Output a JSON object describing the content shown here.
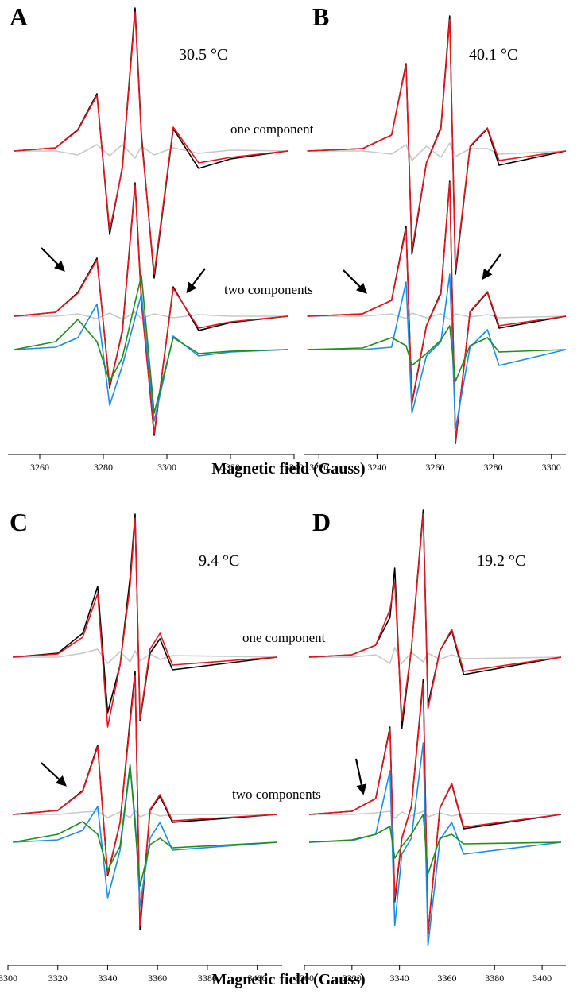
{
  "chart_data": [
    {
      "type": "line",
      "panel_label": "A",
      "temperature": "30.5 °C",
      "one_component_label": "one component",
      "two_components_label": "two components",
      "xlabel": "Magnetic field (Gauss)",
      "xlim": [
        3250,
        3340
      ],
      "xticks": [
        3260,
        3280,
        3300,
        3320,
        3340
      ],
      "x": [
        3252,
        3265,
        3272,
        3278,
        3282,
        3286,
        3290,
        3292,
        3296,
        3302,
        3310,
        3320,
        3338
      ],
      "one_component_series": [
        {
          "color": "#c8c8c8",
          "values": [
            0,
            0,
            -0.5,
            0.8,
            -0.6,
            0.8,
            -0.9,
            0.6,
            -0.5,
            0.4,
            -0.3,
            0.1,
            0
          ]
        },
        {
          "color": "#000000",
          "values": [
            0,
            0.4,
            2.7,
            7.2,
            -10.5,
            -2,
            18,
            2,
            -16,
            2.8,
            -2.2,
            -1,
            0
          ]
        },
        {
          "color": "#e8141e",
          "values": [
            0,
            0.4,
            2.6,
            7,
            -10,
            -2.2,
            17.5,
            1.5,
            -15.5,
            3,
            -1.5,
            -0.8,
            0
          ]
        }
      ],
      "two_component_series": [
        {
          "color": "#c8c8c8",
          "values": [
            0,
            0,
            0.3,
            -0.3,
            0.4,
            -0.4,
            0.5,
            -0.3,
            0.3,
            -0.2,
            0.2,
            0,
            0
          ]
        },
        {
          "color": "#000000",
          "values": [
            0,
            0.5,
            3,
            7.3,
            -9,
            -1.8,
            16.8,
            2,
            -15,
            3.7,
            -1.8,
            -0.8,
            0
          ]
        },
        {
          "color": "#e8141e",
          "values": [
            0,
            0.5,
            2.9,
            7.1,
            -8.8,
            -2,
            16.5,
            1.6,
            -14.8,
            3.5,
            -1.5,
            -0.7,
            0
          ]
        },
        {
          "color": "#1e8ce6",
          "values": [
            0,
            0.3,
            1.5,
            5.7,
            -7,
            -2,
            4,
            7,
            -9,
            1.7,
            -0.8,
            -0.3,
            0
          ]
        },
        {
          "color": "#1e8c1e",
          "values": [
            0,
            1,
            3.8,
            1,
            -4,
            -1,
            6,
            9.3,
            -8,
            1.5,
            -0.5,
            -0.2,
            0
          ]
        }
      ]
    },
    {
      "type": "line",
      "panel_label": "B",
      "temperature": "40.1 °C",
      "xlim": [
        3215,
        3305
      ],
      "xticks": [
        3220,
        3240,
        3260,
        3280,
        3300
      ],
      "x": [
        3216,
        3235,
        3245,
        3250,
        3252,
        3257,
        3262,
        3265,
        3267,
        3272,
        3278,
        3282,
        3305
      ],
      "one_component_series": [
        {
          "color": "#c8c8c8",
          "values": [
            0,
            0,
            -0.4,
            0.8,
            -1.2,
            0.6,
            -0.8,
            1,
            -0.7,
            0.3,
            0.3,
            -0.4,
            0
          ]
        },
        {
          "color": "#000000",
          "values": [
            0,
            0.3,
            2,
            11,
            -13,
            -1.5,
            3,
            17,
            -15.5,
            0.5,
            2.8,
            -1.8,
            0
          ]
        },
        {
          "color": "#e8141e",
          "values": [
            0,
            0.3,
            2,
            10.8,
            -12.5,
            -1.5,
            2.8,
            16.5,
            -15,
            0.6,
            2.9,
            -1.2,
            0
          ]
        }
      ],
      "two_component_series": [
        {
          "color": "#c8c8c8",
          "values": [
            0,
            0,
            0.3,
            -0.3,
            0.4,
            -0.2,
            0.3,
            -0.4,
            0.3,
            -0.1,
            0.2,
            -0.2,
            0
          ]
        },
        {
          "color": "#000000",
          "values": [
            0,
            0.3,
            2,
            11.3,
            -11,
            -1.2,
            3,
            17,
            -16,
            0.5,
            3,
            -1.5,
            0
          ]
        },
        {
          "color": "#e8141e",
          "values": [
            0,
            0.3,
            2,
            11,
            -10.8,
            -1.2,
            2.8,
            16.8,
            -15.8,
            0.6,
            3.1,
            -1.2,
            0
          ]
        },
        {
          "color": "#1e8ce6",
          "values": [
            0,
            0,
            0.3,
            8.5,
            -8,
            -0.8,
            1,
            9.5,
            -10,
            0.3,
            2.5,
            -2,
            0
          ]
        },
        {
          "color": "#1e8c1e",
          "values": [
            0,
            0.2,
            1.5,
            0.5,
            -2,
            -0.5,
            1.2,
            3,
            -4,
            0.5,
            1.5,
            -0.3,
            0
          ]
        }
      ]
    },
    {
      "type": "line",
      "panel_label": "C",
      "temperature": "9.4 °C",
      "one_component_label": "one component",
      "two_components_label": "two components",
      "xlabel": "Magnetic field (Gauss)",
      "xlim": [
        3300,
        3410
      ],
      "xticks": [
        3300,
        3320,
        3340,
        3360,
        3380,
        3400
      ],
      "x": [
        3302,
        3320,
        3330,
        3336,
        3340,
        3345,
        3349,
        3351,
        3353,
        3357,
        3361,
        3366,
        3408
      ],
      "one_component_series": [
        {
          "color": "#c8c8c8",
          "values": [
            0,
            0,
            0.5,
            1,
            -0.8,
            0.7,
            -0.6,
            0.8,
            -0.5,
            0.4,
            -0.3,
            0.2,
            0
          ]
        },
        {
          "color": "#000000",
          "values": [
            0,
            0.5,
            3,
            8.9,
            -7,
            -1,
            10,
            18,
            -8,
            0.5,
            2.3,
            -1.6,
            0
          ]
        },
        {
          "color": "#e8141e",
          "values": [
            0,
            0.4,
            2.5,
            8,
            -8.8,
            -1,
            9,
            17.5,
            -7.8,
            1,
            3,
            -1,
            0
          ]
        }
      ],
      "two_component_series": [
        {
          "color": "#c8c8c8",
          "values": [
            0,
            0,
            0.3,
            0.4,
            -0.4,
            0.3,
            -0.4,
            0.5,
            -0.3,
            0.2,
            -0.2,
            0,
            0
          ]
        },
        {
          "color": "#000000",
          "values": [
            0,
            0.5,
            3,
            8.7,
            -7.7,
            -1,
            12,
            18,
            -14.5,
            0.5,
            2.3,
            -1,
            0
          ]
        },
        {
          "color": "#e8141e",
          "values": [
            0,
            0.5,
            2.9,
            8.5,
            -7.5,
            -1,
            11.5,
            17.5,
            -14,
            0.6,
            2.5,
            -0.8,
            0
          ]
        },
        {
          "color": "#1e8ce6",
          "values": [
            0,
            0.3,
            1.5,
            4.5,
            -7,
            -1,
            9.5,
            3,
            -8,
            0.5,
            2.5,
            -1,
            0
          ]
        },
        {
          "color": "#1e8c1e",
          "values": [
            0,
            1,
            2.6,
            1,
            -3.5,
            -0.5,
            9.8,
            2,
            -5.5,
            -0.3,
            0.5,
            -0.7,
            0
          ]
        }
      ]
    },
    {
      "type": "line",
      "panel_label": "D",
      "temperature": "19.2 °C",
      "xlim": [
        3300,
        3410
      ],
      "xticks": [
        3300,
        3320,
        3340,
        3360,
        3380,
        3400
      ],
      "x": [
        3302,
        3320,
        3330,
        3336,
        3338,
        3341,
        3345,
        3350,
        3352,
        3357,
        3362,
        3367,
        3408
      ],
      "one_component_series": [
        {
          "color": "#c8c8c8",
          "values": [
            0,
            0,
            0.3,
            -0.8,
            1.2,
            -0.8,
            0.6,
            -0.6,
            0.5,
            -0.3,
            0.3,
            -0.2,
            0
          ]
        },
        {
          "color": "#000000",
          "values": [
            0,
            0.3,
            1.5,
            5,
            11.2,
            -9,
            1,
            18.5,
            -6,
            0.8,
            3.3,
            -2.2,
            0
          ]
        },
        {
          "color": "#e8141e",
          "values": [
            0,
            0.3,
            1.5,
            6,
            9.5,
            -8,
            1,
            18,
            -6.5,
            0.8,
            3.5,
            -1.8,
            0
          ]
        }
      ],
      "two_component_series": [
        {
          "color": "#c8c8c8",
          "values": [
            0,
            0,
            0.2,
            0.4,
            -0.5,
            0.3,
            -0.2,
            0.4,
            -0.3,
            0.2,
            -0.2,
            0.1,
            0
          ]
        },
        {
          "color": "#000000",
          "values": [
            0,
            0.4,
            2,
            11,
            -11,
            -3,
            1,
            17,
            -15,
            0.8,
            3.8,
            -1.8,
            0
          ]
        },
        {
          "color": "#e8141e",
          "values": [
            0,
            0.4,
            2,
            10.8,
            -10.5,
            -3,
            1,
            16.5,
            -14.8,
            0.8,
            3.9,
            -1.6,
            0
          ]
        },
        {
          "color": "#1e8ce6",
          "values": [
            0,
            0.2,
            1,
            9,
            -10.5,
            -1.5,
            0.5,
            12.5,
            -13,
            0.3,
            2.5,
            -1.5,
            0
          ]
        },
        {
          "color": "#1e8c1e",
          "values": [
            0,
            0.3,
            1,
            2,
            -2,
            -0.5,
            1,
            3.5,
            -4,
            0.5,
            1,
            -0.2,
            0
          ]
        }
      ]
    }
  ]
}
